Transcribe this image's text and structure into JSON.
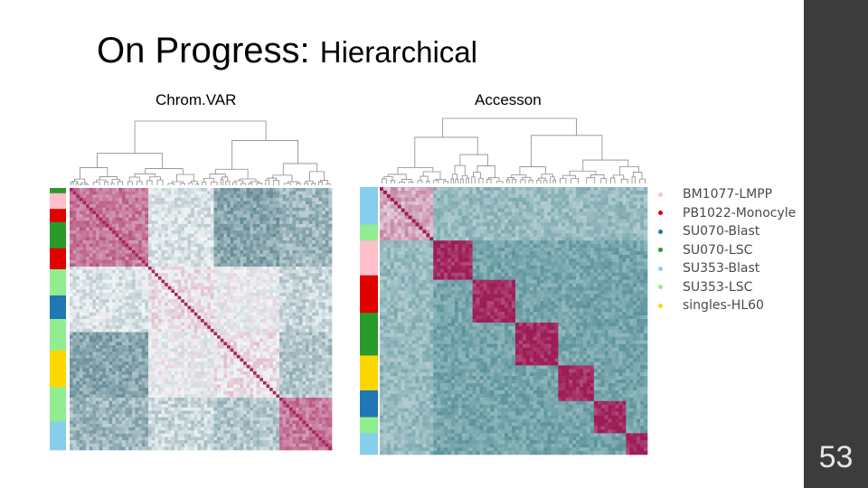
{
  "slide": {
    "title_main": "On Progress: ",
    "title_rest": "Hierarchical",
    "page_number": "53"
  },
  "chart_data": [
    {
      "type": "heatmap",
      "title": "Chrom.VAR",
      "colorscale": [
        "#1e5566",
        "#f2f6f7",
        "#a8245e"
      ],
      "row_group_colors": [
        "#2a9a2a",
        "#ffc0cb",
        "#e00000",
        "#2a9a2a",
        "#e00000",
        "#90ee90",
        "#1f77b4",
        "#90ee90",
        "#ffd700",
        "#90ee90",
        "#87ceeb"
      ],
      "dendrogram": "top"
    },
    {
      "type": "heatmap",
      "title": "Accesson",
      "colorscale": [
        "#4d8a93",
        "#f2f6f7",
        "#9d1c56"
      ],
      "row_group_colors": [
        "#87ceeb",
        "#90ee90",
        "#ffc0cb",
        "#e00000",
        "#2a9a2a",
        "#ffd700",
        "#1f77b4",
        "#90ee90",
        "#87ceeb"
      ],
      "dendrogram": "top",
      "legend": [
        {
          "label": "BM1077-LMPP",
          "color": "#ffc0cb"
        },
        {
          "label": "PB1022-Monocyle",
          "color": "#e00000"
        },
        {
          "label": "SU070-Blast",
          "color": "#1f77b4"
        },
        {
          "label": "SU070-LSC",
          "color": "#2a9a2a"
        },
        {
          "label": "SU353-Blast",
          "color": "#87ceeb"
        },
        {
          "label": "SU353-LSC",
          "color": "#90ee90"
        },
        {
          "label": "singles-HL60",
          "color": "#ffd700"
        }
      ]
    }
  ]
}
